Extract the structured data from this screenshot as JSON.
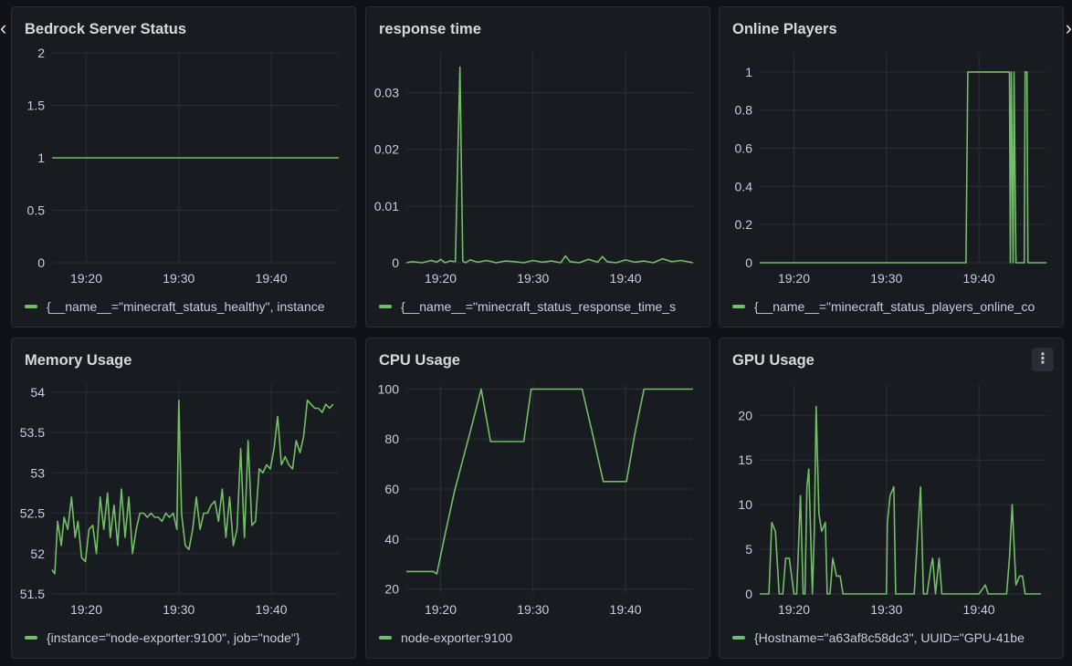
{
  "nav": {
    "prev_icon": "‹",
    "next_icon": "›"
  },
  "panels": [
    {
      "title": "Bedrock Server Status",
      "legend": "{__name__=\"minecraft_status_healthy\", instance"
    },
    {
      "title": "response time",
      "legend": "{__name__=\"minecraft_status_response_time_s"
    },
    {
      "title": "Online Players",
      "legend": "{__name__=\"minecraft_status_players_online_co"
    },
    {
      "title": "Memory Usage",
      "legend": "{instance=\"node-exporter:9100\", job=\"node\"}"
    },
    {
      "title": "CPU Usage",
      "legend": "node-exporter:9100"
    },
    {
      "title": "GPU Usage",
      "legend": "{Hostname=\"a63af8c58dc3\", UUID=\"GPU-41be",
      "menu_icon": "⋮"
    }
  ],
  "colors": {
    "series": "#73bf69",
    "panel_bg": "#181b1f",
    "page_bg": "#111217"
  },
  "chart_data": [
    {
      "type": "line",
      "title": "Bedrock Server Status",
      "x_ticks": [
        "19:20",
        "19:30",
        "19:40"
      ],
      "y_ticks": [
        "0",
        "0.5",
        "1",
        "1.5",
        "2"
      ],
      "xlim": [
        16.3,
        47.3
      ],
      "ylim": [
        0,
        2
      ],
      "series": [
        {
          "x": [
            16.3,
            47.3
          ],
          "y": [
            1,
            1
          ]
        }
      ]
    },
    {
      "type": "line",
      "title": "response time",
      "x_ticks": [
        "19:20",
        "19:30",
        "19:40"
      ],
      "y_ticks": [
        "0",
        "0.01",
        "0.02",
        "0.03"
      ],
      "xlim": [
        16.3,
        47.3
      ],
      "ylim": [
        0,
        0.037
      ],
      "series": [
        {
          "x": [
            16.3,
            17,
            18,
            19,
            19.6,
            20,
            20.5,
            21,
            21.6,
            22.1,
            22.4,
            22.7,
            23.2,
            24,
            25,
            26,
            27,
            28,
            29,
            30,
            31,
            32,
            33,
            33.5,
            34,
            35,
            36,
            37,
            37.5,
            38,
            39,
            40,
            41,
            42,
            43,
            44,
            45,
            46,
            47.3
          ],
          "y": [
            0,
            0.0002,
            0,
            0.0004,
            0.0001,
            0.0006,
            0,
            0.0003,
            0.0002,
            0.0345,
            0.0003,
            0,
            0.0005,
            0.0001,
            0.0004,
            0,
            0.0003,
            0.0002,
            0,
            0.0004,
            0.0001,
            0.0003,
            0,
            0.0012,
            0.0002,
            0,
            0.0006,
            0.0001,
            0.0011,
            0.0002,
            0,
            0.0005,
            0.0001,
            0.0003,
            0,
            0.0007,
            0.0002,
            0.0004,
            0
          ]
        }
      ]
    },
    {
      "type": "line",
      "title": "Online Players",
      "x_ticks": [
        "19:20",
        "19:30",
        "19:40"
      ],
      "y_ticks": [
        "0",
        "0.2",
        "0.4",
        "0.6",
        "0.8",
        "1"
      ],
      "xlim": [
        16.3,
        47.3
      ],
      "ylim": [
        0,
        1.1
      ],
      "series": [
        {
          "x": [
            16.3,
            38.6,
            38.8,
            43.3,
            43.4,
            43.5,
            43.7,
            43.8,
            44,
            44.9,
            45,
            45.2,
            45.3,
            45.5,
            47.3
          ],
          "y": [
            0,
            0,
            1,
            1,
            0,
            1,
            0,
            1,
            0,
            0,
            1,
            1,
            0,
            0,
            0
          ]
        }
      ]
    },
    {
      "type": "line",
      "title": "Memory Usage",
      "x_ticks": [
        "19:20",
        "19:30",
        "19:40"
      ],
      "y_ticks": [
        "51.5",
        "52",
        "52.5",
        "53",
        "53.5",
        "54"
      ],
      "xlim": [
        16.3,
        47.3
      ],
      "ylim": [
        51.5,
        54.1
      ],
      "series": [
        {
          "x": [
            16.3,
            16.6,
            16.9,
            17.3,
            17.6,
            18,
            18.4,
            18.8,
            19.1,
            19.5,
            19.9,
            20.3,
            20.7,
            21.1,
            21.5,
            21.9,
            22.3,
            22.6,
            23,
            23.4,
            23.8,
            24.2,
            24.6,
            25,
            25.4,
            25.8,
            26.2,
            26.6,
            27,
            27.4,
            27.8,
            28.2,
            28.6,
            29,
            29.4,
            29.8,
            30,
            30.3,
            30.7,
            31.1,
            31.5,
            31.9,
            32.3,
            32.7,
            33.1,
            33.5,
            33.9,
            34.3,
            34.7,
            35.1,
            35.5,
            35.9,
            36.3,
            36.7,
            37.1,
            37.5,
            37.9,
            38.3,
            38.7,
            39.1,
            39.5,
            39.9,
            40.3,
            40.7,
            41.1,
            41.5,
            41.9,
            42.3,
            42.7,
            43.1,
            43.5,
            43.9,
            44.3,
            44.7,
            45.1,
            45.5,
            45.9,
            46.3,
            46.7
          ],
          "y": [
            51.8,
            51.75,
            52.4,
            52.1,
            52.45,
            52.3,
            52.7,
            52.2,
            52.4,
            51.95,
            51.9,
            52.3,
            52.35,
            52,
            52.7,
            52.3,
            52.75,
            52.2,
            52.6,
            52.1,
            52.8,
            52.2,
            52.7,
            52,
            52.3,
            52.5,
            52.5,
            52.45,
            52.5,
            52.45,
            52.45,
            52.4,
            52.5,
            52.45,
            52.5,
            52.3,
            53.9,
            52.5,
            52.1,
            52.05,
            52.3,
            52.7,
            52.3,
            52.5,
            52.5,
            52.6,
            52.65,
            52.4,
            52.8,
            52.2,
            52.7,
            52.1,
            52.3,
            53.3,
            52.2,
            53.4,
            52.35,
            52.4,
            53.05,
            53,
            53.1,
            53.05,
            53.3,
            53.7,
            53.1,
            53.2,
            53.1,
            53.05,
            53.4,
            53.25,
            53.45,
            53.9,
            53.85,
            53.8,
            53.8,
            53.75,
            53.85,
            53.8,
            53.85
          ]
        }
      ]
    },
    {
      "type": "line",
      "title": "CPU Usage",
      "x_ticks": [
        "19:20",
        "19:30",
        "19:40"
      ],
      "y_ticks": [
        "20",
        "40",
        "60",
        "80",
        "100"
      ],
      "xlim": [
        16.3,
        47.3
      ],
      "ylim": [
        18,
        102
      ],
      "series": [
        {
          "x": [
            16.3,
            18.5,
            19.2,
            19.6,
            20.5,
            21.5,
            22.5,
            23.5,
            24.4,
            25.4,
            26.5,
            28,
            29,
            29.8,
            32,
            34,
            35.3,
            36.5,
            37.6,
            38,
            40.1,
            41,
            42,
            47.3
          ],
          "y": [
            27,
            27,
            27,
            26,
            42,
            59,
            73,
            87,
            100,
            79,
            79,
            79,
            79,
            100,
            100,
            100,
            100,
            81,
            63,
            63,
            63,
            82,
            100,
            100
          ]
        }
      ]
    },
    {
      "type": "line",
      "title": "GPU Usage",
      "x_ticks": [
        "19:20",
        "19:30",
        "19:40"
      ],
      "y_ticks": [
        "0",
        "5",
        "10",
        "15",
        "20"
      ],
      "xlim": [
        16.3,
        47.3
      ],
      "ylim": [
        0,
        23.5
      ],
      "series": [
        {
          "x": [
            16.3,
            17.3,
            17.6,
            18,
            18.4,
            18.8,
            19.1,
            19.5,
            20,
            20.3,
            20.7,
            21,
            21.2,
            21.4,
            21.6,
            22,
            22.2,
            22.4,
            22.7,
            23,
            23.4,
            23.6,
            23.9,
            24.2,
            24.6,
            25,
            25.3,
            25.5,
            25.8,
            26.2,
            26.5,
            27,
            28,
            29,
            30,
            30.1,
            30.4,
            30.8,
            31,
            31.3,
            31.6,
            32,
            33,
            33.4,
            33.7,
            34,
            34.4,
            34.8,
            35,
            35.3,
            35.7,
            36,
            37,
            38,
            39,
            40,
            40.7,
            41,
            41.3,
            42,
            43,
            43.3,
            43.6,
            44,
            44.4,
            44.7,
            45,
            45.3,
            45.6,
            46,
            46.3,
            46.7
          ],
          "y": [
            0,
            0,
            8,
            7,
            0,
            0,
            4,
            4,
            0,
            0,
            11,
            0,
            0,
            12,
            14,
            0,
            7,
            21,
            9,
            7,
            8,
            0,
            0,
            4,
            2,
            2,
            0,
            0,
            0,
            0,
            0,
            0,
            0,
            0,
            0,
            8,
            11,
            12,
            0,
            0,
            0,
            0,
            0,
            7,
            12,
            0,
            0,
            3,
            4,
            0,
            4,
            0,
            0,
            0,
            0,
            0,
            1,
            0,
            0,
            0,
            0,
            4,
            10,
            1,
            2,
            2,
            0,
            0,
            0,
            0,
            0,
            0
          ]
        }
      ]
    }
  ]
}
